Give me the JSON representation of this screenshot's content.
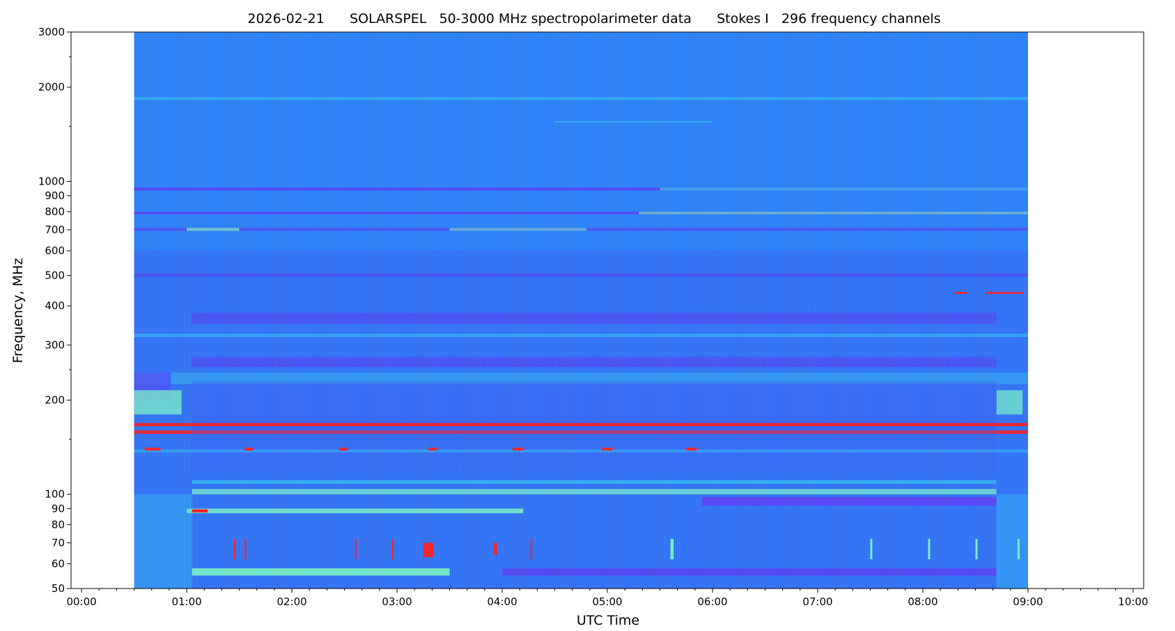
{
  "chart_data": {
    "type": "heatmap",
    "title": "2026-02-21      SOLARSPEL   50-3000 MHz spectropolarimeter data      Stokes I   296 frequency channels",
    "xlabel": "UTC Time",
    "ylabel": "Frequency, MHz",
    "x_unit": "hours UTC",
    "xlim": [
      -0.1,
      10.1
    ],
    "ylim": [
      50,
      3000
    ],
    "yscale": "log",
    "x_ticks": [
      {
        "value": 0,
        "label": "00:00"
      },
      {
        "value": 1,
        "label": "01:00"
      },
      {
        "value": 2,
        "label": "02:00"
      },
      {
        "value": 3,
        "label": "03:00"
      },
      {
        "value": 4,
        "label": "04:00"
      },
      {
        "value": 5,
        "label": "05:00"
      },
      {
        "value": 6,
        "label": "06:00"
      },
      {
        "value": 7,
        "label": "07:00"
      },
      {
        "value": 8,
        "label": "08:00"
      },
      {
        "value": 9,
        "label": "09:00"
      },
      {
        "value": 10,
        "label": "10:00"
      }
    ],
    "y_ticks": [
      {
        "value": 50,
        "label": "50"
      },
      {
        "value": 60,
        "label": "60"
      },
      {
        "value": 70,
        "label": "70"
      },
      {
        "value": 80,
        "label": "80"
      },
      {
        "value": 90,
        "label": "90"
      },
      {
        "value": 100,
        "label": "100"
      },
      {
        "value": 200,
        "label": "200"
      },
      {
        "value": 300,
        "label": "300"
      },
      {
        "value": 400,
        "label": "400"
      },
      {
        "value": 500,
        "label": "500"
      },
      {
        "value": 600,
        "label": "600"
      },
      {
        "value": 700,
        "label": "700"
      },
      {
        "value": 800,
        "label": "800"
      },
      {
        "value": 900,
        "label": "900"
      },
      {
        "value": 1000,
        "label": "1000"
      },
      {
        "value": 2000,
        "label": "2000"
      },
      {
        "value": 3000,
        "label": "3000"
      }
    ],
    "data_extent": {
      "x_start": 0.5,
      "x_end": 9.0,
      "y_start": 50,
      "y_end": 3000
    },
    "colors": {
      "background": "#2a7ff5",
      "low_band": "#3d5af0",
      "deep_band": "#5a3df0",
      "cyan": "#33d9f2",
      "mint": "#7af2c4",
      "red": "#ff1a1a"
    },
    "bands": [
      {
        "f_lo": 1820,
        "f_hi": 1860,
        "x_start": 0.5,
        "x_end": 9.0,
        "color": "#33d9f2",
        "opacity": 0.45
      },
      {
        "f_lo": 1540,
        "f_hi": 1560,
        "x_start": 4.5,
        "x_end": 6.0,
        "color": "#33d9f2",
        "opacity": 0.45
      },
      {
        "f_lo": 935,
        "f_hi": 955,
        "x_start": 0.5,
        "x_end": 9.0,
        "color": "#5a3df0",
        "opacity": 0.9
      },
      {
        "f_lo": 935,
        "f_hi": 955,
        "x_start": 5.5,
        "x_end": 9.0,
        "color": "#33d9f2",
        "opacity": 0.6
      },
      {
        "f_lo": 785,
        "f_hi": 800,
        "x_start": 0.5,
        "x_end": 9.0,
        "color": "#5a3df0",
        "opacity": 0.85
      },
      {
        "f_lo": 785,
        "f_hi": 800,
        "x_start": 5.3,
        "x_end": 9.0,
        "color": "#7af2c4",
        "opacity": 0.6
      },
      {
        "f_lo": 695,
        "f_hi": 710,
        "x_start": 0.5,
        "x_end": 9.0,
        "color": "#5a3df0",
        "opacity": 0.7
      },
      {
        "f_lo": 695,
        "f_hi": 710,
        "x_start": 1.0,
        "x_end": 1.5,
        "color": "#7af2c4",
        "opacity": 0.7
      },
      {
        "f_lo": 695,
        "f_hi": 710,
        "x_start": 3.5,
        "x_end": 4.8,
        "color": "#7af2c4",
        "opacity": 0.55
      },
      {
        "f_lo": 495,
        "f_hi": 508,
        "x_start": 0.5,
        "x_end": 9.0,
        "color": "#5a3df0",
        "opacity": 0.6
      },
      {
        "f_lo": 350,
        "f_hi": 380,
        "x_start": 1.05,
        "x_end": 8.7,
        "color": "#5a3df0",
        "opacity": 0.55
      },
      {
        "f_lo": 318,
        "f_hi": 326,
        "x_start": 0.5,
        "x_end": 9.0,
        "color": "#33d9f2",
        "opacity": 0.45
      },
      {
        "f_lo": 255,
        "f_hi": 275,
        "x_start": 1.05,
        "x_end": 8.7,
        "color": "#5a3df0",
        "opacity": 0.55
      },
      {
        "f_lo": 225,
        "f_hi": 245,
        "x_start": 0.5,
        "x_end": 9.0,
        "color": "#33d9f2",
        "opacity": 0.35
      },
      {
        "f_lo": 200,
        "f_hi": 245,
        "x_start": 0.5,
        "x_end": 0.85,
        "color": "#4c4df0",
        "opacity": 0.8
      },
      {
        "f_lo": 180,
        "f_hi": 215,
        "x_start": 0.5,
        "x_end": 0.95,
        "color": "#7af2c4",
        "opacity": 0.75
      },
      {
        "f_lo": 180,
        "f_hi": 215,
        "x_start": 8.7,
        "x_end": 8.95,
        "color": "#7af2c4",
        "opacity": 0.7
      },
      {
        "f_lo": 160,
        "f_hi": 230,
        "x_start": 1.05,
        "x_end": 8.7,
        "color": "#3d5af0",
        "opacity": 0.35
      },
      {
        "f_lo": 165,
        "f_hi": 169,
        "x_start": 0.5,
        "x_end": 9.0,
        "color": "#ff1a1a",
        "opacity": 0.9
      },
      {
        "f_lo": 156,
        "f_hi": 160,
        "x_start": 0.5,
        "x_end": 9.0,
        "color": "#ff1a1a",
        "opacity": 0.85
      },
      {
        "f_lo": 118,
        "f_hi": 165,
        "x_start": 1.05,
        "x_end": 8.7,
        "color": "#3d5af0",
        "opacity": 0.3
      },
      {
        "f_lo": 136,
        "f_hi": 139,
        "x_start": 0.5,
        "x_end": 9.0,
        "color": "#33d9f2",
        "opacity": 0.4
      },
      {
        "f_lo": 108,
        "f_hi": 111,
        "x_start": 1.05,
        "x_end": 8.7,
        "color": "#33d9f2",
        "opacity": 0.55
      },
      {
        "f_lo": 100,
        "f_hi": 104,
        "x_start": 1.05,
        "x_end": 8.7,
        "color": "#7af2c4",
        "opacity": 0.7
      },
      {
        "f_lo": 92,
        "f_hi": 98,
        "x_start": 5.9,
        "x_end": 8.7,
        "color": "#5a3df0",
        "opacity": 0.85
      },
      {
        "f_lo": 87,
        "f_hi": 90,
        "x_start": 1.0,
        "x_end": 4.2,
        "color": "#7af2c4",
        "opacity": 0.85
      },
      {
        "f_lo": 87.5,
        "f_hi": 89.5,
        "x_start": 1.05,
        "x_end": 1.2,
        "color": "#ff1a1a",
        "opacity": 1
      },
      {
        "f_lo": 55,
        "f_hi": 58,
        "x_start": 1.05,
        "x_end": 3.5,
        "color": "#7af2c4",
        "opacity": 0.9
      },
      {
        "f_lo": 55,
        "f_hi": 58,
        "x_start": 4.0,
        "x_end": 8.7,
        "color": "#5a3df0",
        "opacity": 0.8
      },
      {
        "f_lo": 50,
        "f_hi": 100,
        "x_start": 0.5,
        "x_end": 1.05,
        "color": "#33d9f2",
        "opacity": 0.3
      },
      {
        "f_lo": 50,
        "f_hi": 100,
        "x_start": 8.7,
        "x_end": 9.0,
        "color": "#33d9f2",
        "opacity": 0.3
      }
    ],
    "bursts": [
      {
        "x": 3.25,
        "width": 0.1,
        "f_lo": 63,
        "f_hi": 70,
        "color": "#ff1a1a"
      },
      {
        "x": 3.92,
        "width": 0.03,
        "f_lo": 64,
        "f_hi": 70,
        "color": "#ff1a1a"
      },
      {
        "x": 1.45,
        "width": 0.015,
        "f_lo": 62,
        "f_hi": 72,
        "color": "#ff1a1a"
      },
      {
        "x": 1.55,
        "width": 0.015,
        "f_lo": 62,
        "f_hi": 72,
        "color": "#ff1a1a"
      },
      {
        "x": 2.6,
        "width": 0.015,
        "f_lo": 62,
        "f_hi": 72,
        "color": "#ff1a1a"
      },
      {
        "x": 2.95,
        "width": 0.015,
        "f_lo": 62,
        "f_hi": 72,
        "color": "#ff1a1a"
      },
      {
        "x": 4.27,
        "width": 0.015,
        "f_lo": 62,
        "f_hi": 72,
        "color": "#ff1a1a"
      },
      {
        "x": 5.6,
        "width": 0.03,
        "f_lo": 62,
        "f_hi": 72,
        "color": "#7af2c4"
      },
      {
        "x": 7.5,
        "width": 0.02,
        "f_lo": 62,
        "f_hi": 72,
        "color": "#7af2c4"
      },
      {
        "x": 8.05,
        "width": 0.02,
        "f_lo": 62,
        "f_hi": 72,
        "color": "#7af2c4"
      },
      {
        "x": 8.5,
        "width": 0.02,
        "f_lo": 62,
        "f_hi": 72,
        "color": "#7af2c4"
      },
      {
        "x": 8.9,
        "width": 0.02,
        "f_lo": 62,
        "f_hi": 72,
        "color": "#7af2c4"
      },
      {
        "x": 0.6,
        "width": 0.15,
        "f_lo": 138,
        "f_hi": 141,
        "color": "#ff1a1a"
      },
      {
        "x": 1.55,
        "width": 0.08,
        "f_lo": 138,
        "f_hi": 141,
        "color": "#ff1a1a"
      },
      {
        "x": 2.45,
        "width": 0.08,
        "f_lo": 138,
        "f_hi": 141,
        "color": "#ff1a1a"
      },
      {
        "x": 3.3,
        "width": 0.08,
        "f_lo": 138,
        "f_hi": 141,
        "color": "#ff1a1a"
      },
      {
        "x": 4.1,
        "width": 0.1,
        "f_lo": 138,
        "f_hi": 141,
        "color": "#ff1a1a"
      },
      {
        "x": 4.95,
        "width": 0.1,
        "f_lo": 138,
        "f_hi": 141,
        "color": "#ff1a1a"
      },
      {
        "x": 5.75,
        "width": 0.1,
        "f_lo": 138,
        "f_hi": 141,
        "color": "#ff1a1a"
      },
      {
        "x": 8.3,
        "width": 0.12,
        "f_lo": 437,
        "f_hi": 443,
        "color": "#ff1a1a"
      },
      {
        "x": 8.6,
        "width": 0.35,
        "f_lo": 437,
        "f_hi": 443,
        "color": "#ff1a1a"
      }
    ]
  }
}
